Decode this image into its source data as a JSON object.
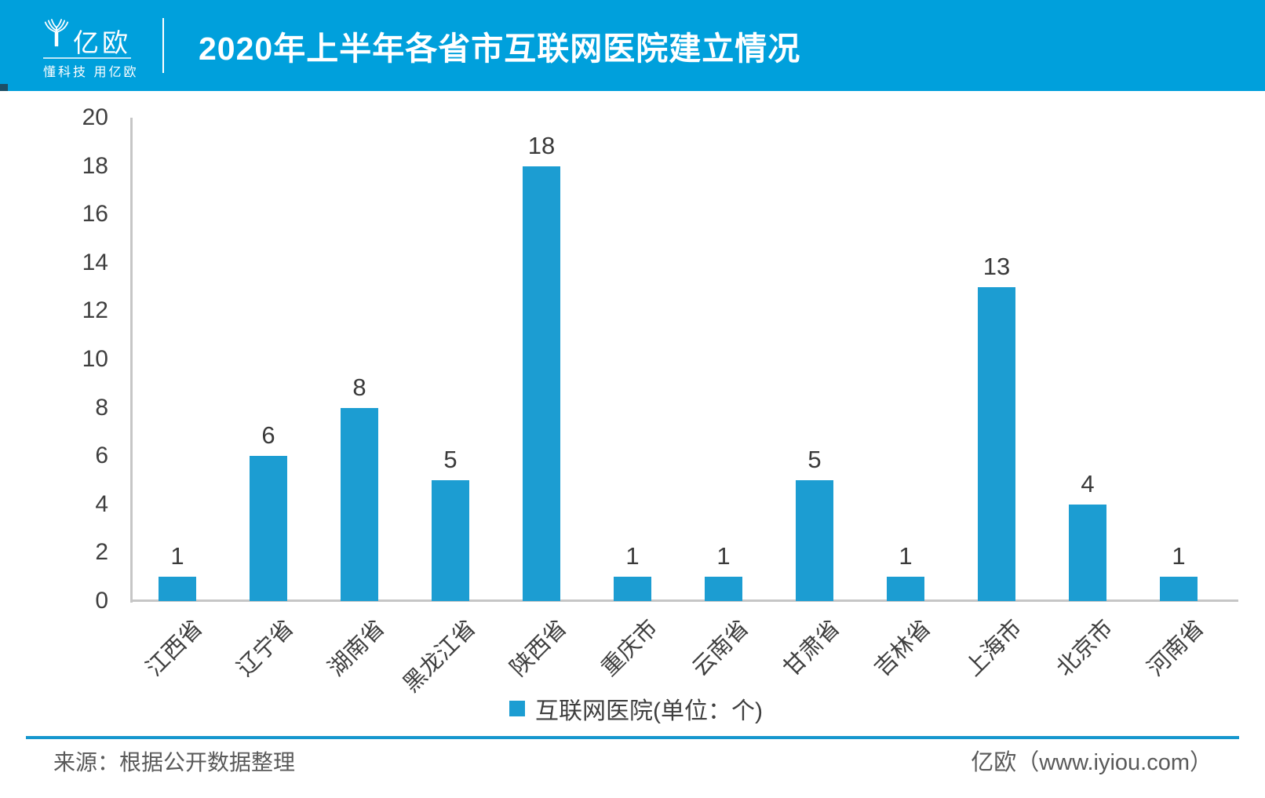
{
  "header": {
    "logo_text": "亿欧",
    "tagline": "懂科技 用亿欧",
    "title": "2020年上半年各省市互联网医院建立情况"
  },
  "chart_data": {
    "type": "bar",
    "title": "2020年上半年各省市互联网医院建立情况",
    "categories": [
      "江西省",
      "辽宁省",
      "湖南省",
      "黑龙江省",
      "陕西省",
      "重庆市",
      "云南省",
      "甘肃省",
      "吉林省",
      "上海市",
      "北京市",
      "河南省"
    ],
    "values": [
      1,
      6,
      8,
      5,
      18,
      1,
      1,
      5,
      1,
      13,
      4,
      1
    ],
    "series_name": "互联网医院(单位：个)",
    "xlabel": "",
    "ylabel": "",
    "ylim": [
      0,
      20
    ],
    "yticks": [
      0,
      2,
      4,
      6,
      8,
      10,
      12,
      14,
      16,
      18,
      20
    ],
    "grid": false,
    "data_labels": true,
    "legend_position": "bottom",
    "bar_color": "#1C9DD2"
  },
  "legend": {
    "label": "互联网医院(单位：个)"
  },
  "footer": {
    "source": "来源：根据公开数据整理",
    "brand": "亿欧（www.iyiou.com）"
  },
  "colors": {
    "header_bg": "#00A0DC",
    "bar": "#1C9DD2",
    "axis": "#C6C6C6",
    "tick_text": "#3F3F3F",
    "footer_text": "#595959",
    "divider": "#1697CE"
  }
}
